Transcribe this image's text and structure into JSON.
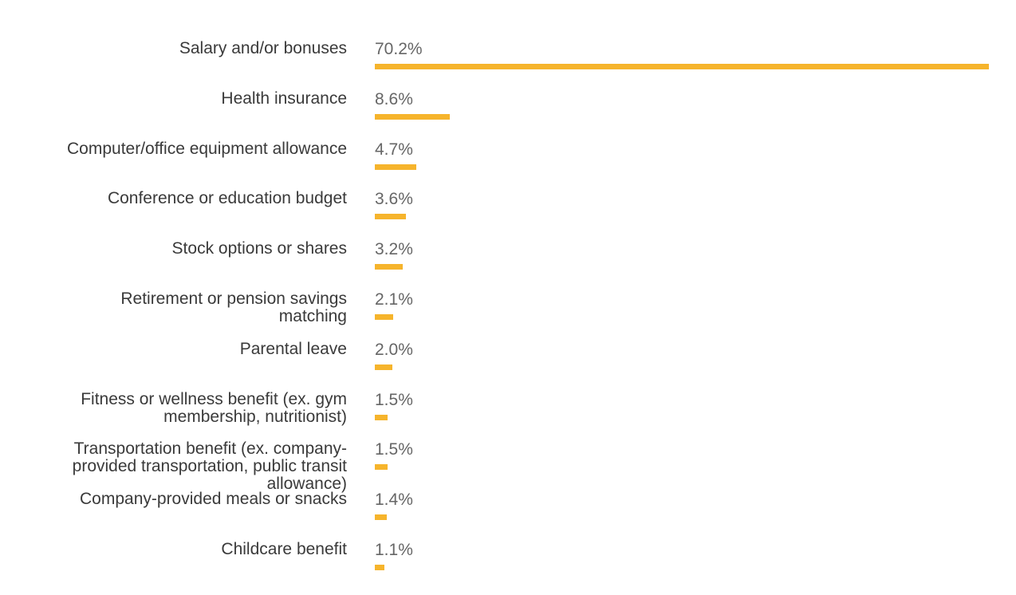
{
  "chart_data": {
    "type": "bar",
    "orientation": "horizontal",
    "categories": [
      "Salary and/or bonuses",
      "Health insurance",
      "Computer/office equipment allowance",
      "Conference or education budget",
      "Stock options or shares",
      "Retirement or pension savings\nmatching",
      "Parental leave",
      "Fitness or wellness benefit (ex. gym\nmembership, nutritionist)",
      "Transportation benefit (ex. company-\nprovided transportation, public transit\nallowance)",
      "Company-provided meals or snacks",
      "Childcare benefit"
    ],
    "values": [
      70.2,
      8.6,
      4.7,
      3.6,
      3.2,
      2.1,
      2.0,
      1.5,
      1.5,
      1.4,
      1.1
    ],
    "value_labels": [
      "70.2%",
      "8.6%",
      "4.7%",
      "3.6%",
      "3.2%",
      "2.1%",
      "2.0%",
      "1.5%",
      "1.5%",
      "1.4%",
      "1.1%"
    ],
    "xlim": [
      0,
      70.2
    ],
    "grid": false,
    "bar_color": "#f6b42c"
  }
}
